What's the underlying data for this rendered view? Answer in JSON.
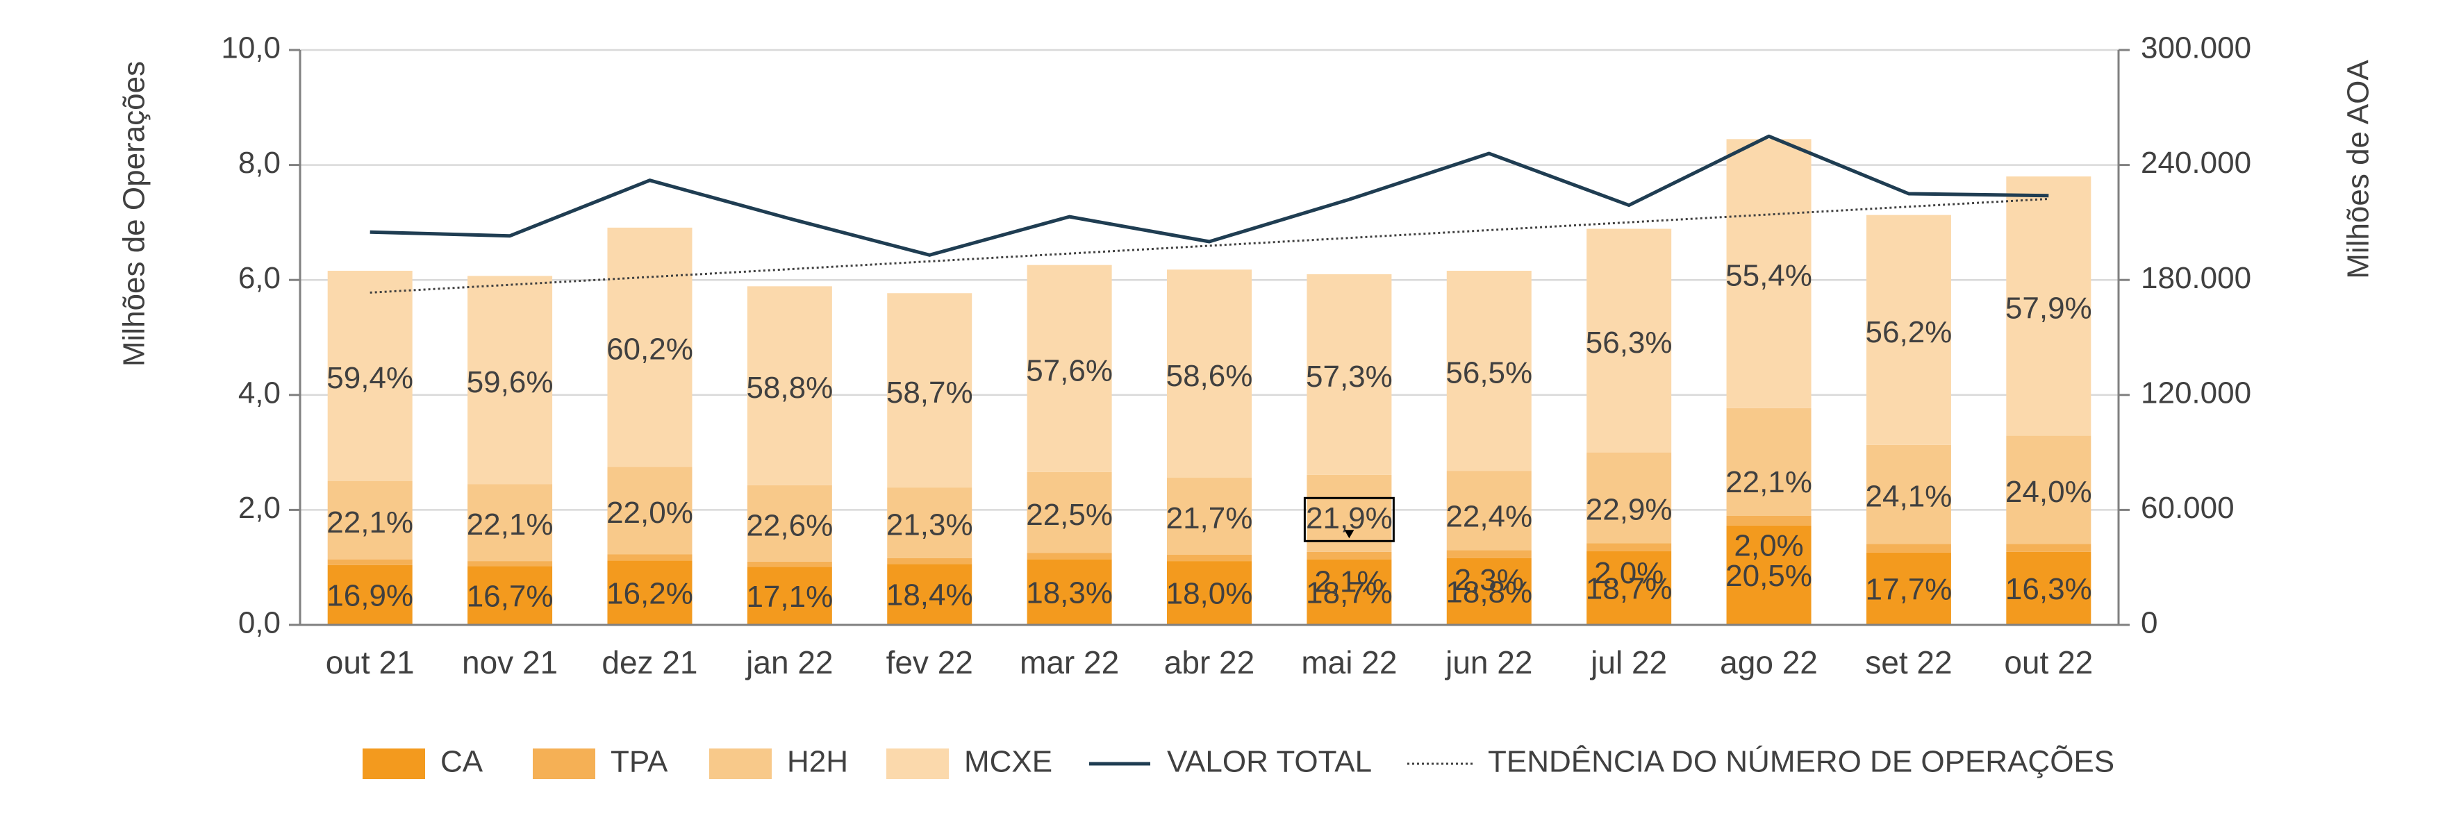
{
  "chart_data": {
    "type": "bar",
    "stacked": true,
    "categories": [
      "out 21",
      "nov 21",
      "dez 21",
      "jan 22",
      "fev 22",
      "mar 22",
      "abr 22",
      "mai 22",
      "jun 22",
      "jul 22",
      "ago 22",
      "set 22",
      "out 22"
    ],
    "ylabel": "Milhões de Operações",
    "y2label": "Milhões de AOA",
    "ylim": [
      0,
      10
    ],
    "y2lim": [
      0,
      300000
    ],
    "yticks": [
      "0,0",
      "2,0",
      "4,0",
      "6,0",
      "8,0",
      "10,0"
    ],
    "y2ticks": [
      "0",
      "60.000",
      "120.000",
      "180.000",
      "240.000",
      "300.000"
    ],
    "colors": {
      "CA": "#f39a1e",
      "TPA": "#f5b055",
      "H2H": "#f8c98a",
      "MCXE": "#fbd9ac",
      "line": "#1f3d52",
      "trend": "#404040"
    },
    "series": [
      {
        "name": "CA",
        "values": [
          1.04,
          1.02,
          1.12,
          1.01,
          1.06,
          1.14,
          1.11,
          1.14,
          1.16,
          1.28,
          1.73,
          1.26,
          1.27
        ]
      },
      {
        "name": "TPA",
        "values": [
          0.1,
          0.09,
          0.11,
          0.09,
          0.1,
          0.11,
          0.11,
          0.13,
          0.14,
          0.14,
          0.17,
          0.15,
          0.14
        ]
      },
      {
        "name": "H2H",
        "values": [
          1.36,
          1.34,
          1.52,
          1.33,
          1.23,
          1.41,
          1.34,
          1.34,
          1.38,
          1.58,
          1.87,
          1.72,
          1.88
        ]
      },
      {
        "name": "MCXE",
        "values": [
          3.66,
          3.62,
          4.16,
          3.46,
          3.38,
          3.6,
          3.62,
          3.49,
          3.48,
          3.89,
          4.68,
          4.0,
          4.51
        ]
      }
    ],
    "labels": {
      "CA": [
        "16,9%",
        "16,7%",
        "16,2%",
        "17,1%",
        "18,4%",
        "18,3%",
        "18,0%",
        "18,7%",
        "18,8%",
        "18,7%",
        "20,5%",
        "17,7%",
        "16,3%"
      ],
      "TPA": [
        "",
        "",
        "",
        "",
        "",
        "",
        "",
        "2,1%",
        "2,3%",
        "2,0%",
        "2,0%",
        "",
        ""
      ],
      "H2H": [
        "22,1%",
        "22,1%",
        "22,0%",
        "22,6%",
        "21,3%",
        "22,5%",
        "21,7%",
        "21,9%",
        "22,4%",
        "22,9%",
        "22,1%",
        "24,1%",
        "24,0%"
      ],
      "MCXE": [
        "59,4%",
        "59,6%",
        "60,2%",
        "58,8%",
        "58,7%",
        "57,6%",
        "58,6%",
        "57,3%",
        "56,5%",
        "56,3%",
        "55,4%",
        "56,2%",
        "57,9%"
      ]
    },
    "line": {
      "name": "VALOR TOTAL",
      "values": [
        205000,
        203000,
        232000,
        212000,
        193000,
        213000,
        200000,
        222000,
        246000,
        219000,
        255000,
        225000,
        224000
      ]
    },
    "trend": {
      "name": "TENDÊNCIA DO NÚMERO DE OPERAÇÕES",
      "start": 5.78,
      "end": 7.41
    },
    "legend": [
      "CA",
      "TPA",
      "H2H",
      "MCXE",
      "VALOR TOTAL",
      "TENDÊNCIA DO NÚMERO DE OPERAÇÕES"
    ],
    "callout": {
      "category": "mai 22",
      "label": "21,9%"
    }
  }
}
